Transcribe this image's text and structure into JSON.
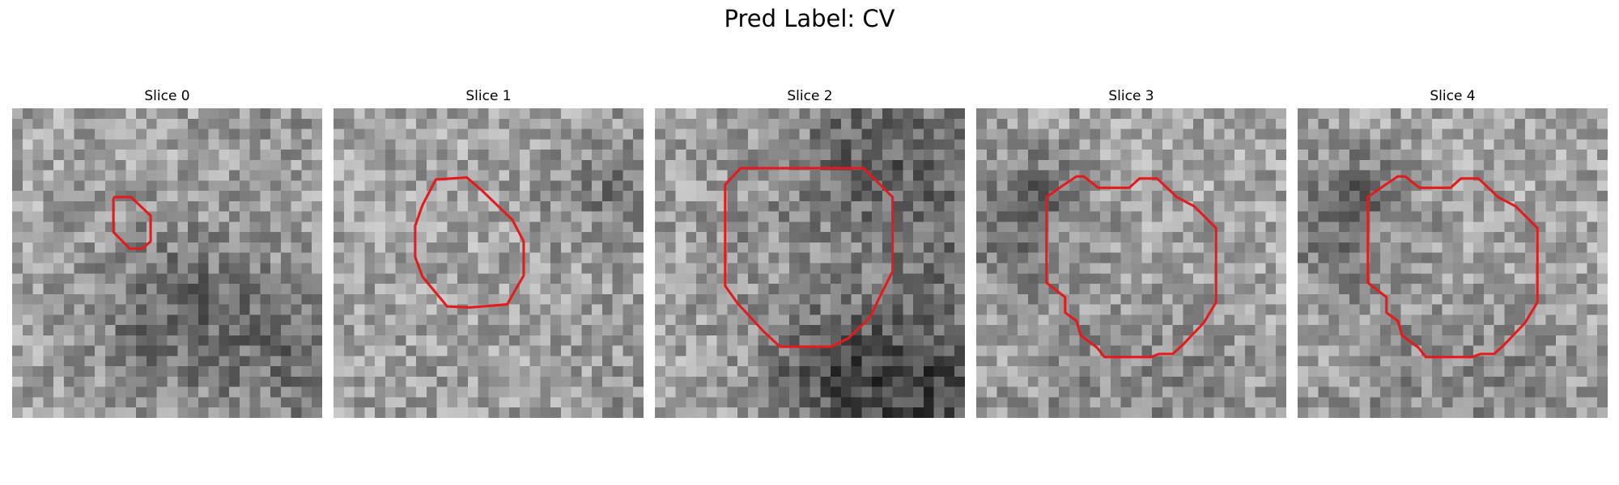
{
  "figure": {
    "suptitle": "Pred Label: CV"
  },
  "colors": {
    "contour": "#e41a1c",
    "background": "#ffffff"
  },
  "panels": [
    {
      "title": "Slice 0",
      "seed": 11,
      "darkness": 0.55
    },
    {
      "title": "Slice 1",
      "seed": 23,
      "darkness": 0.35
    },
    {
      "title": "Slice 2",
      "seed": 37,
      "darkness": 0.75
    },
    {
      "title": "Slice 3",
      "seed": 51,
      "darkness": 0.5
    },
    {
      "title": "Slice 4",
      "seed": 51,
      "darkness": 0.5
    }
  ]
}
